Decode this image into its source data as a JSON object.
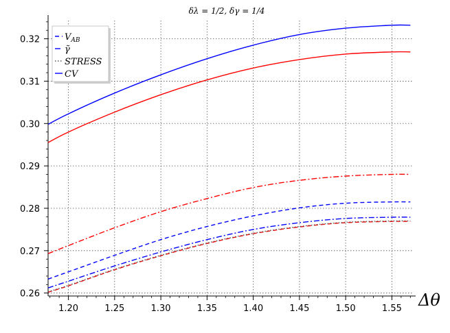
{
  "chart_data": {
    "type": "line",
    "title": "δλ = 1/2, δγ = 1/4",
    "xlabel": "Δθ",
    "ylabel": "",
    "xlim": [
      1.178,
      1.572
    ],
    "ylim": [
      0.2593,
      0.3243
    ],
    "grid": true,
    "grid_style": "dotted",
    "legend_position": "top-left",
    "xticks": [
      1.2,
      1.25,
      1.3,
      1.35,
      1.4,
      1.45,
      1.5,
      1.55
    ],
    "xtick_labels": [
      "1.20",
      "1.25",
      "1.30",
      "1.35",
      "1.40",
      "1.45",
      "1.50",
      "1.55"
    ],
    "yticks": [
      0.26,
      0.27,
      0.28,
      0.29,
      0.3,
      0.31,
      0.32
    ],
    "ytick_labels": [
      "0.26",
      "0.27",
      "0.28",
      "0.29",
      "0.30",
      "0.31",
      "0.32"
    ],
    "legend": [
      {
        "label": "V_AB",
        "color": "#0000ff",
        "dash": "6,4"
      },
      {
        "label": "γ̃",
        "color": "#0000ff",
        "dash": "8,3,2,3"
      },
      {
        "label": "STRESS",
        "color": "#555555",
        "dash": "1.5,2.5"
      },
      {
        "label": "CV",
        "color": "#0000ff",
        "dash": ""
      }
    ],
    "x": [
      1.178,
      1.2,
      1.25,
      1.3,
      1.35,
      1.4,
      1.45,
      1.5,
      1.55,
      1.57
    ],
    "series": [
      {
        "color": "#0000ff",
        "dash": "",
        "values": [
          0.2998,
          0.3023,
          0.3072,
          0.3115,
          0.3153,
          0.3185,
          0.321,
          0.3225,
          0.3232,
          0.3232
        ]
      },
      {
        "color": "#ff0000",
        "dash": "",
        "values": [
          0.2955,
          0.298,
          0.3027,
          0.3068,
          0.3103,
          0.3131,
          0.3151,
          0.3164,
          0.3169,
          0.3169
        ]
      },
      {
        "color": "#ff0000",
        "dash": "8,3,2,3",
        "values": [
          0.2693,
          0.2712,
          0.2754,
          0.2792,
          0.2823,
          0.2849,
          0.2866,
          0.2876,
          0.288,
          0.288
        ]
      },
      {
        "color": "#0000ff",
        "dash": "6,4",
        "values": [
          0.2633,
          0.265,
          0.2689,
          0.2726,
          0.2757,
          0.2782,
          0.2801,
          0.2812,
          0.2815,
          0.2815
        ]
      },
      {
        "color": "#0000ff",
        "dash": "8,3,2,3",
        "values": [
          0.2612,
          0.2628,
          0.2664,
          0.2697,
          0.2726,
          0.275,
          0.2766,
          0.2776,
          0.2779,
          0.2779
        ]
      },
      {
        "color": "#ff0000",
        "dash": "6,4",
        "values": [
          0.2602,
          0.2617,
          0.2655,
          0.2688,
          0.2717,
          0.274,
          0.2756,
          0.2766,
          0.2769,
          0.2769
        ]
      },
      {
        "color": "#555555",
        "dash": "1.5,2.5",
        "values": [
          0.2603,
          0.2618,
          0.2656,
          0.2689,
          0.2718,
          0.2741,
          0.2757,
          0.2767,
          0.277,
          0.277
        ]
      }
    ]
  }
}
